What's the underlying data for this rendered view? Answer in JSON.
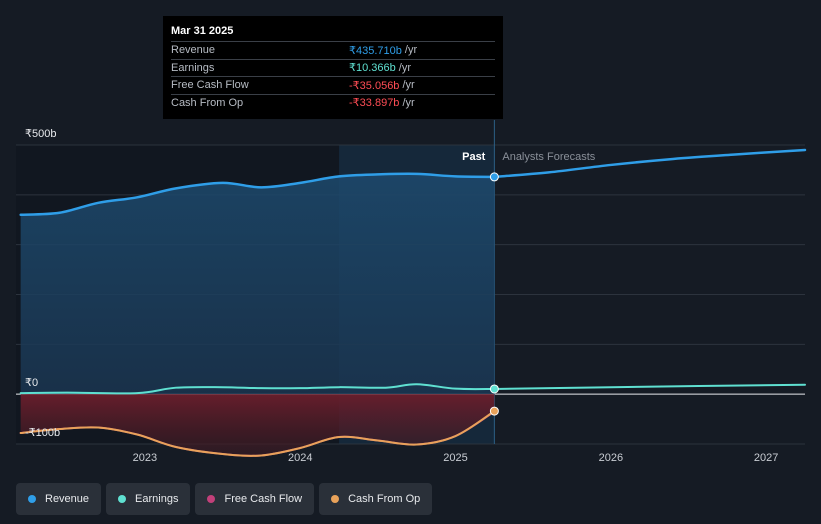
{
  "tooltip": {
    "date": "Mar 31 2025",
    "rows": [
      {
        "label": "Revenue",
        "value": "₹435.710b",
        "unit": "/yr",
        "color": "#2f9ee8"
      },
      {
        "label": "Earnings",
        "value": "₹10.366b",
        "unit": "/yr",
        "color": "#5fe0d1"
      },
      {
        "label": "Free Cash Flow",
        "value": "-₹35.056b",
        "unit": "/yr",
        "color": "#ff4d55"
      },
      {
        "label": "Cash From Op",
        "value": "-₹33.897b",
        "unit": "/yr",
        "color": "#ff4d55"
      }
    ]
  },
  "chart_data": {
    "type": "line",
    "title": "",
    "y_tick_labels": [
      "₹500b",
      "₹0",
      "-₹100b"
    ],
    "y_ticks": [
      500,
      0,
      -100
    ],
    "ylim": [
      -100,
      500
    ],
    "xlim": [
      2022.17,
      2027.25
    ],
    "x_ticks": [
      2023,
      2024,
      2025,
      2026,
      2027
    ],
    "x_tick_labels": [
      "2023",
      "2024",
      "2025",
      "2026",
      "2027"
    ],
    "past_label": "Past",
    "forecast_label": "Analysts Forecasts",
    "past_end": 2025.25,
    "highlight_start": 2024.25,
    "series": [
      {
        "name": "Revenue",
        "color": "#2f9ee8",
        "x": [
          2022.2,
          2022.45,
          2022.7,
          2022.95,
          2023.2,
          2023.5,
          2023.75,
          2024.0,
          2024.25,
          2024.5,
          2024.75,
          2025.0,
          2025.25
        ],
        "values": [
          360,
          364,
          384,
          395,
          413,
          424,
          415,
          424,
          437,
          441,
          442,
          437,
          436
        ]
      },
      {
        "name": "Revenue Forecast",
        "color": "#2f9ee8",
        "x": [
          2025.25,
          2025.6,
          2026.0,
          2026.4,
          2026.8,
          2027.25
        ],
        "values": [
          436,
          445,
          460,
          472,
          481,
          490
        ]
      },
      {
        "name": "Earnings",
        "color": "#5fe0d1",
        "x": [
          2022.2,
          2022.5,
          2022.95,
          2023.2,
          2023.5,
          2023.75,
          2024.0,
          2024.25,
          2024.55,
          2024.75,
          2025.0,
          2025.25
        ],
        "values": [
          2,
          3,
          2,
          13,
          14,
          12,
          12,
          14,
          13,
          20,
          11,
          10.4
        ]
      },
      {
        "name": "Earnings Forecast",
        "color": "#5fe0d1",
        "x": [
          2025.25,
          2026.0,
          2027.25
        ],
        "values": [
          10.4,
          14,
          19
        ]
      },
      {
        "name": "Free Cash Flow",
        "color": "#c2407a",
        "x": [
          2022.2,
          2022.45,
          2022.7,
          2022.95,
          2023.2,
          2023.5,
          2023.75,
          2024.0,
          2024.25,
          2024.5,
          2024.75,
          2025.0,
          2025.25
        ],
        "values": [
          -78,
          -70,
          -67,
          -81,
          -106,
          -120,
          -123,
          -108,
          -86,
          -93,
          -101,
          -84,
          -35
        ]
      },
      {
        "name": "Cash From Op",
        "color": "#e8a25a",
        "x": [
          2022.2,
          2022.45,
          2022.7,
          2022.95,
          2023.2,
          2023.5,
          2023.75,
          2024.0,
          2024.25,
          2024.5,
          2024.75,
          2025.0,
          2025.25
        ],
        "values": [
          -78,
          -70,
          -67,
          -81,
          -106,
          -120,
          -123,
          -108,
          -86,
          -93,
          -101,
          -84,
          -34
        ]
      }
    ],
    "markers": [
      {
        "series": "Revenue",
        "x": 2025.25,
        "y": 436,
        "color": "#2f9ee8"
      },
      {
        "series": "Earnings",
        "x": 2025.25,
        "y": 10.4,
        "color": "#5fe0d1"
      },
      {
        "series": "Cash From Op",
        "x": 2025.25,
        "y": -34,
        "color": "#e8a25a"
      }
    ]
  },
  "legend": [
    {
      "label": "Revenue",
      "color": "#2f9ee8"
    },
    {
      "label": "Earnings",
      "color": "#5fe0d1"
    },
    {
      "label": "Free Cash Flow",
      "color": "#c2407a"
    },
    {
      "label": "Cash From Op",
      "color": "#e8a25a"
    }
  ]
}
